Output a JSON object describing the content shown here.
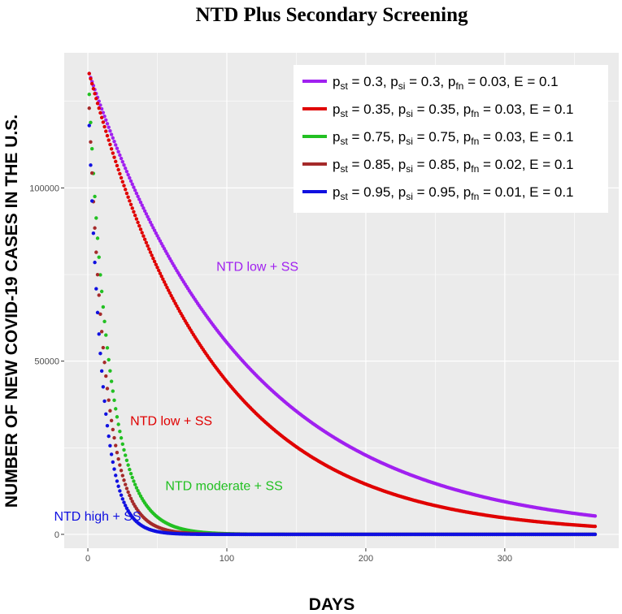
{
  "chart_data": {
    "type": "scatter",
    "title": "NTD Plus Secondary Screening",
    "xlabel": "DAYS",
    "ylabel": "NUMBER OF NEW COVID-19 CASES IN THE U.S.",
    "xlim": [
      -17,
      382
    ],
    "ylim": [
      -4000,
      139000
    ],
    "xticks": [
      0,
      100,
      200,
      300
    ],
    "xtick_labels": [
      "0",
      "100",
      "200",
      "300"
    ],
    "yticks": [
      0,
      50000,
      100000
    ],
    "ytick_labels": [
      "0",
      "50000",
      "100000"
    ],
    "minor_xticks": [
      50,
      150,
      250,
      350
    ],
    "minor_yticks": [
      25000,
      75000,
      125000
    ],
    "grid": true,
    "background_color": "#ebebeb",
    "grid_color": "#ffffff",
    "legend_position": "top-right",
    "x_start": 1,
    "x_end": 365,
    "series": [
      {
        "name": "pst = 0.3, psi = 0.3, pfn = 0.03, E = 0.1",
        "legend_parts": [
          "p",
          "st",
          " = 0.3, p",
          "si",
          " = 0.3, p",
          "fn",
          " = 0.03, E = 0.1"
        ],
        "color": "#a020f0",
        "initial_value": 133000,
        "end_value": 5300,
        "annotation": "NTD low + SS"
      },
      {
        "name": "pst = 0.35, psi = 0.35, pfn = 0.03, E = 0.1",
        "legend_parts": [
          "p",
          "st",
          " = 0.35, p",
          "si",
          " = 0.35, p",
          "fn",
          " = 0.03, E = 0.1"
        ],
        "color": "#e00000",
        "initial_value": 133000,
        "end_value": 2300,
        "annotation": "NTD low + SS"
      },
      {
        "name": "pst = 0.75, psi = 0.75, pfn = 0.03, E = 0.1",
        "legend_parts": [
          "p",
          "st",
          " = 0.75, p",
          "si",
          " = 0.75, p",
          "fn",
          " = 0.03, E = 0.1"
        ],
        "color": "#22c022",
        "initial_value": 127000,
        "half_life_days": 10.5,
        "annotation": "NTD moderate + SS"
      },
      {
        "name": "pst = 0.85, psi = 0.85, pfn = 0.02, E = 0.1",
        "legend_parts": [
          "p",
          "st",
          " = 0.85, p",
          "si",
          " = 0.85, p",
          "fn",
          " = 0.02, E = 0.1"
        ],
        "color": "#a52a2a",
        "initial_value": 123000,
        "half_life_days": 8.4,
        "annotation": ""
      },
      {
        "name": "pst = 0.95, psi = 0.95, pfn = 0.01, E = 0.1",
        "legend_parts": [
          "p",
          "st",
          " = 0.95, p",
          "si",
          " = 0.95, p",
          "fn",
          " = 0.01, E = 0.1"
        ],
        "color": "#1010e0",
        "initial_value": 118000,
        "half_life_days": 6.8,
        "annotation": "NTD high + SS"
      }
    ],
    "annotations": [
      {
        "text": "NTD low + SS",
        "x": 122,
        "y": 76000,
        "color": "#a020f0"
      },
      {
        "text": "NTD low + SS",
        "x": 60,
        "y": 31500,
        "color": "#e00000"
      },
      {
        "text": "NTD moderate + SS",
        "x": 98,
        "y": 12800,
        "color": "#22c022"
      },
      {
        "text": "NTD high + SS",
        "x": 7,
        "y": 4000,
        "color": "#1010e0"
      }
    ]
  }
}
